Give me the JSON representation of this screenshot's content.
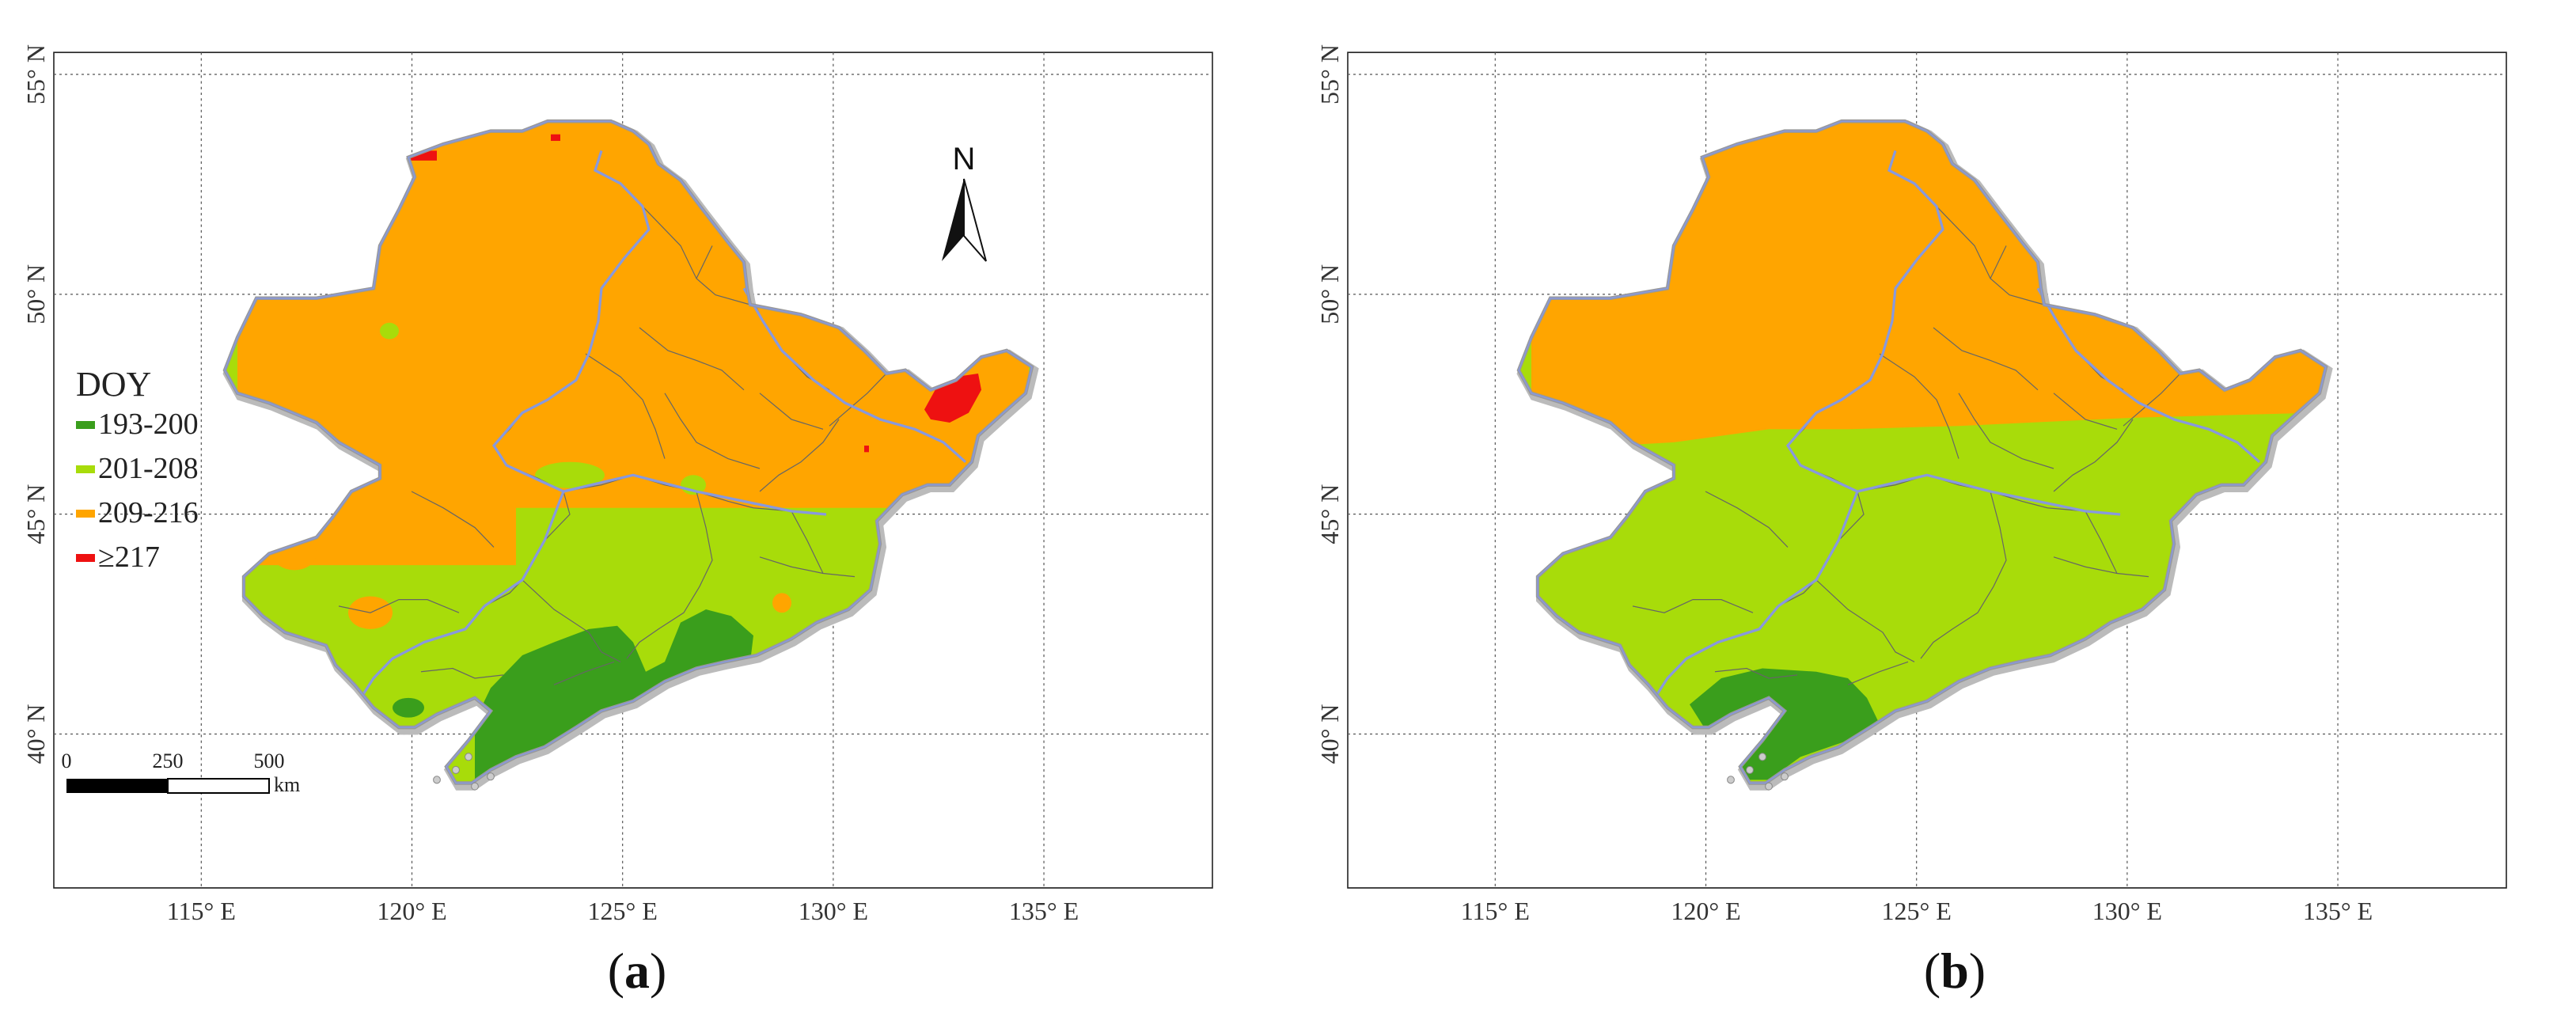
{
  "colors": {
    "class1": "#3a9e1c",
    "class2": "#a8dc0a",
    "class3": "#ffa500",
    "class4": "#ee1111",
    "boundary": "#8899dd",
    "outline": "#999999",
    "grid": "#555555"
  },
  "map_a": {
    "caption_letter": "a",
    "legend": {
      "title": "DOY",
      "items": [
        {
          "label": "193-200",
          "color": "#3a9e1c"
        },
        {
          "label": "201-208",
          "color": "#a8dc0a"
        },
        {
          "label": "209-216",
          "color": "#ffa500"
        },
        {
          "label": "≥217",
          "color": "#ee1111"
        }
      ]
    },
    "north_label": "N",
    "scale_bar": {
      "ticks": [
        "0",
        "250",
        "500"
      ],
      "unit": "km"
    }
  },
  "map_b": {
    "caption_letter": "b"
  },
  "grid": {
    "lon_labels": [
      "115° E",
      "120° E",
      "125° E",
      "130° E",
      "135° E"
    ],
    "lat_labels": [
      "55° N",
      "50° N",
      "45° N",
      "40° N"
    ]
  }
}
